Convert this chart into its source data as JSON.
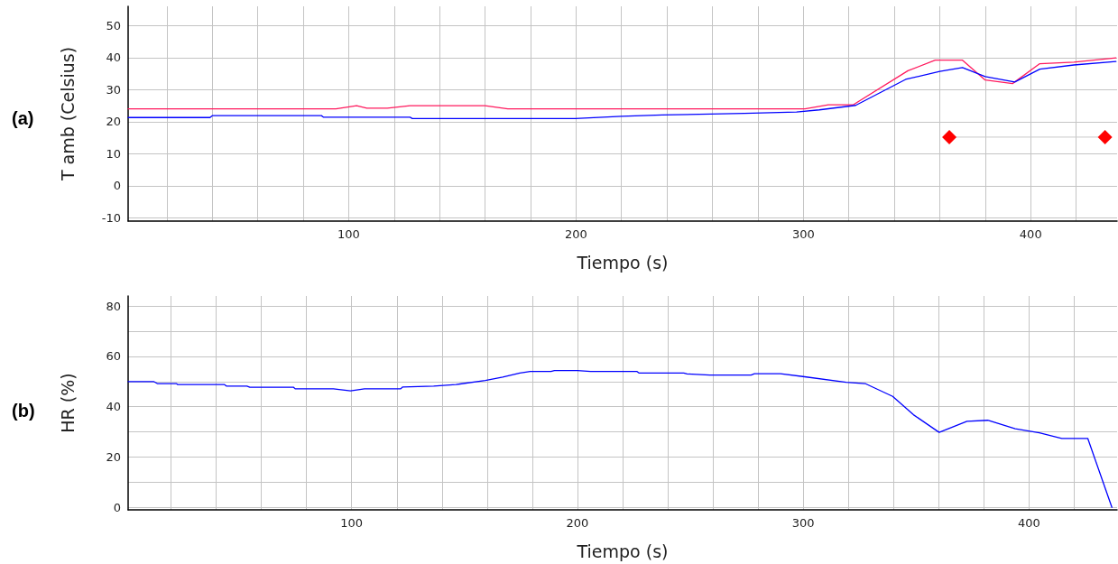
{
  "chart_data": [
    {
      "type": "line",
      "title": "(a)",
      "xlabel": "Tiempo (s)",
      "ylabel": "T amb (Celsius)",
      "xlim": [
        3,
        438
      ],
      "ylim": [
        -11,
        56
      ],
      "xticks": [
        {
          "value": 20,
          "label": null
        },
        {
          "value": 40,
          "label": null
        },
        {
          "value": 60,
          "label": null
        },
        {
          "value": 80,
          "label": null
        },
        100,
        {
          "value": 120,
          "label": null
        },
        {
          "value": 140,
          "label": null
        },
        {
          "value": 160,
          "label": null
        },
        {
          "value": 180,
          "label": null
        },
        200,
        {
          "value": 220,
          "label": null
        },
        {
          "value": 240,
          "label": null
        },
        {
          "value": 260,
          "label": null
        },
        {
          "value": 280,
          "label": null
        },
        300,
        {
          "value": 320,
          "label": null
        },
        {
          "value": 340,
          "label": null
        },
        {
          "value": 360,
          "label": null
        },
        {
          "value": 380,
          "label": null
        },
        400,
        {
          "value": 420,
          "label": null
        }
      ],
      "yticks": [
        -10,
        0,
        10,
        20,
        30,
        40,
        50
      ],
      "grid": true,
      "marker": "none",
      "line_style": "solid",
      "series": [
        {
          "color": "#ff1a5e",
          "x": [
            3,
            94.4,
            103.5,
            108,
            117,
            127,
            160,
            170,
            300.7,
            311,
            322,
            346,
            358,
            370,
            380,
            392,
            404,
            419,
            437.5
          ],
          "values": [
            24,
            24,
            25,
            24.2,
            24.2,
            25,
            25,
            24,
            24,
            25.3,
            25.3,
            35.9,
            39.2,
            39.2,
            33,
            31.9,
            38.1,
            38.6,
            39.9
          ]
        },
        {
          "color": "#0000ff",
          "x": [
            3,
            39,
            40,
            88,
            89,
            127,
            128,
            199.6,
            220,
            238,
            274,
            297,
            307,
            323,
            345,
            360,
            370,
            380,
            393,
            404,
            419,
            437.5
          ],
          "values": [
            21.3,
            21.3,
            21.9,
            21.9,
            21.4,
            21.4,
            21,
            21,
            21.7,
            22.1,
            22.6,
            23,
            23.7,
            25.1,
            33.2,
            35.7,
            36.9,
            34.1,
            32.4,
            36.4,
            37.7,
            38.8
          ]
        },
        {
          "color": "#ff0000",
          "marker": "diamond",
          "x": [
            364.2,
            432.7
          ],
          "values": [
            15.2,
            15.2
          ]
        }
      ]
    },
    {
      "type": "line",
      "title": "(b)",
      "xlabel": "Tiempo (s)",
      "ylabel": "HR (%)",
      "xlim": [
        1,
        439
      ],
      "ylim": [
        -1,
        84
      ],
      "xticks": [
        {
          "value": 20,
          "label": null
        },
        {
          "value": 40,
          "label": null
        },
        {
          "value": 60,
          "label": null
        },
        {
          "value": 80,
          "label": null
        },
        100,
        {
          "value": 120,
          "label": null
        },
        {
          "value": 140,
          "label": null
        },
        {
          "value": 160,
          "label": null
        },
        {
          "value": 180,
          "label": null
        },
        200,
        {
          "value": 220,
          "label": null
        },
        {
          "value": 240,
          "label": null
        },
        {
          "value": 260,
          "label": null
        },
        {
          "value": 280,
          "label": null
        },
        300,
        {
          "value": 320,
          "label": null
        },
        {
          "value": 340,
          "label": null
        },
        {
          "value": 360,
          "label": null
        },
        {
          "value": 380,
          "label": null
        },
        400,
        {
          "value": 420,
          "label": null
        }
      ],
      "yticks": [
        0,
        {
          "value": 10,
          "label": null
        },
        20,
        {
          "value": 30,
          "label": null
        },
        40,
        {
          "value": 50,
          "label": null
        },
        60,
        {
          "value": 70,
          "label": null
        },
        80
      ],
      "grid": true,
      "marker": "none",
      "line_style": "solid",
      "series": [
        {
          "color": "#0000ff",
          "x": [
            1,
            12.3,
            13.9,
            22.3,
            23,
            43.7,
            44.5,
            53.6,
            54.9,
            74.3,
            75,
            91.9,
            99.5,
            105.7,
            121.7,
            122.5,
            136.3,
            146.2,
            159.2,
            166.9,
            174.5,
            179.1,
            188.3,
            189.8,
            200,
            205.8,
            226.4,
            227.2,
            247.1,
            248.6,
            258.6,
            276.9,
            278.4,
            289.9,
            300.6,
            319,
            327.4,
            339.6,
            348.8,
            360.2,
            372.5,
            381.7,
            393.9,
            404.6,
            414.5,
            426,
            436.7
          ],
          "values": [
            50,
            50,
            49.2,
            49.2,
            48.8,
            48.8,
            48.2,
            48.2,
            47.7,
            47.7,
            47.1,
            47.1,
            46.3,
            47.1,
            47.1,
            47.8,
            48.2,
            48.8,
            50.4,
            51.8,
            53.4,
            54,
            54,
            54.4,
            54.4,
            54,
            54,
            53.4,
            53.4,
            53,
            52.6,
            52.6,
            53.1,
            53.1,
            51.9,
            49.7,
            49.2,
            44.1,
            36.8,
            29.8,
            34.2,
            34.6,
            31.2,
            29.6,
            27.4,
            27.4,
            0
          ]
        }
      ]
    }
  ]
}
